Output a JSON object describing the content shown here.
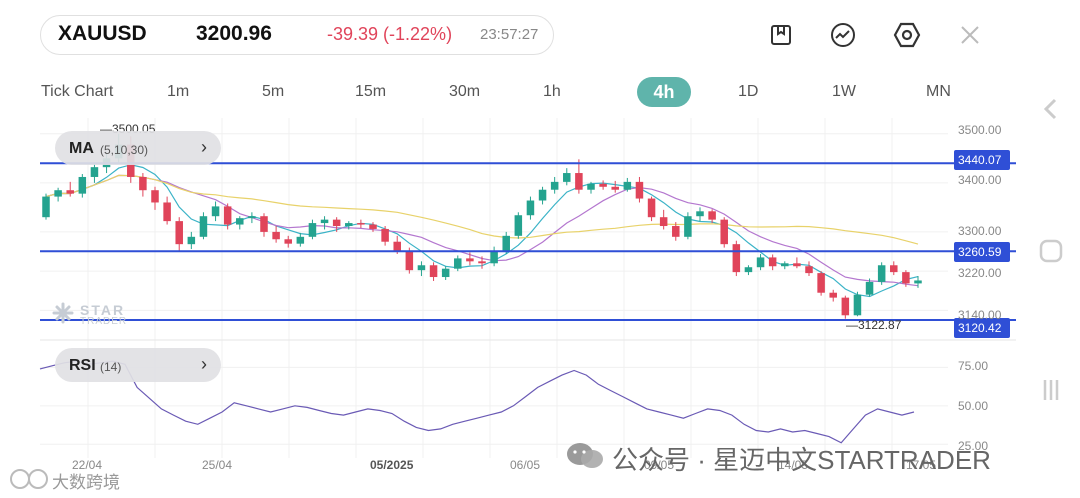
{
  "header": {
    "symbol": "XAUUSD",
    "price": "3200.96",
    "change": "-39.39 (-1.22%)",
    "time": "23:57:27",
    "icons": [
      "bookmark-icon",
      "indicator-icon",
      "settings-icon",
      "close-icon"
    ]
  },
  "timeframes": {
    "items": [
      "Tick Chart",
      "1m",
      "5m",
      "15m",
      "30m",
      "1h",
      "4h",
      "1D",
      "1W",
      "MN"
    ],
    "active": "4h"
  },
  "indicators": {
    "ma_title": "MA",
    "ma_params": "(5,10,30)",
    "rsi_title": "RSI",
    "rsi_params": "(14)"
  },
  "price_levels": {
    "high_marker": "3500.05",
    "low_marker": "3122.87",
    "level_1": "3440.07",
    "level_2": "3260.59",
    "level_3": "3120.42"
  },
  "price_axis": [
    "3500.00",
    "3400.00",
    "3300.00",
    "3220.00",
    "3140.00"
  ],
  "rsi_axis": [
    "75.00",
    "50.00",
    "25.00"
  ],
  "date_axis": [
    "22/04",
    "25/04",
    "05/2025",
    "06/05",
    "09/05",
    "14/05",
    "17/05"
  ],
  "watermarks": {
    "logo_text_1": "STAR",
    "logo_text_2": "TRADER",
    "wechat": "公众号 · 星迈中文STARTRADER",
    "corner": "大数跨境"
  },
  "colors": {
    "up": "#24a38f",
    "down": "#e0445a",
    "ma5": "#3bb3c7",
    "ma10": "#b477cf",
    "ma30": "#e8d26a",
    "level": "#2f4fd6",
    "rsi": "#6a5ab5",
    "active_tf": "#5fb4ab"
  },
  "chart_data": {
    "type": "candlestick",
    "timeframe": "4h",
    "ylim": [
      3100,
      3520
    ],
    "candles": [
      [
        3330,
        3378,
        3325,
        3372
      ],
      [
        3372,
        3390,
        3362,
        3385
      ],
      [
        3385,
        3402,
        3372,
        3378
      ],
      [
        3378,
        3418,
        3370,
        3412
      ],
      [
        3412,
        3440,
        3400,
        3432
      ],
      [
        3432,
        3462,
        3420,
        3450
      ],
      [
        3450,
        3500,
        3440,
        3478
      ],
      [
        3478,
        3495,
        3400,
        3412
      ],
      [
        3412,
        3420,
        3372,
        3385
      ],
      [
        3385,
        3392,
        3345,
        3360
      ],
      [
        3360,
        3372,
        3315,
        3322
      ],
      [
        3322,
        3330,
        3260,
        3275
      ],
      [
        3275,
        3300,
        3265,
        3290
      ],
      [
        3290,
        3340,
        3285,
        3332
      ],
      [
        3332,
        3362,
        3322,
        3352
      ],
      [
        3352,
        3358,
        3305,
        3315
      ],
      [
        3315,
        3332,
        3305,
        3328
      ],
      [
        3328,
        3340,
        3318,
        3332
      ],
      [
        3332,
        3338,
        3290,
        3300
      ],
      [
        3300,
        3312,
        3278,
        3285
      ],
      [
        3285,
        3292,
        3268,
        3276
      ],
      [
        3276,
        3298,
        3270,
        3290
      ],
      [
        3290,
        3325,
        3285,
        3318
      ],
      [
        3318,
        3332,
        3305,
        3325
      ],
      [
        3325,
        3330,
        3300,
        3312
      ],
      [
        3312,
        3322,
        3305,
        3318
      ],
      [
        3318,
        3325,
        3308,
        3315
      ],
      [
        3315,
        3320,
        3300,
        3306
      ],
      [
        3306,
        3312,
        3272,
        3280
      ],
      [
        3280,
        3292,
        3255,
        3262
      ],
      [
        3262,
        3268,
        3215,
        3222
      ],
      [
        3222,
        3240,
        3210,
        3232
      ],
      [
        3232,
        3238,
        3200,
        3208
      ],
      [
        3208,
        3230,
        3202,
        3225
      ],
      [
        3225,
        3252,
        3220,
        3246
      ],
      [
        3246,
        3258,
        3232,
        3240
      ],
      [
        3240,
        3250,
        3225,
        3236
      ],
      [
        3236,
        3270,
        3230,
        3262
      ],
      [
        3262,
        3300,
        3255,
        3292
      ],
      [
        3292,
        3340,
        3286,
        3334
      ],
      [
        3334,
        3372,
        3325,
        3364
      ],
      [
        3364,
        3392,
        3356,
        3386
      ],
      [
        3386,
        3412,
        3378,
        3402
      ],
      [
        3402,
        3430,
        3395,
        3420
      ],
      [
        3420,
        3448,
        3378,
        3386
      ],
      [
        3386,
        3402,
        3378,
        3398
      ],
      [
        3398,
        3405,
        3386,
        3392
      ],
      [
        3392,
        3404,
        3380,
        3386
      ],
      [
        3386,
        3410,
        3382,
        3402
      ],
      [
        3402,
        3412,
        3360,
        3368
      ],
      [
        3368,
        3372,
        3322,
        3330
      ],
      [
        3330,
        3345,
        3305,
        3312
      ],
      [
        3312,
        3320,
        3282,
        3290
      ],
      [
        3290,
        3340,
        3285,
        3332
      ],
      [
        3332,
        3350,
        3322,
        3342
      ],
      [
        3342,
        3346,
        3318,
        3325
      ],
      [
        3325,
        3330,
        3268,
        3275
      ],
      [
        3275,
        3282,
        3210,
        3218
      ],
      [
        3218,
        3232,
        3212,
        3228
      ],
      [
        3228,
        3255,
        3222,
        3248
      ],
      [
        3248,
        3254,
        3222,
        3230
      ],
      [
        3230,
        3240,
        3224,
        3236
      ],
      [
        3236,
        3248,
        3226,
        3230
      ],
      [
        3230,
        3240,
        3210,
        3216
      ],
      [
        3216,
        3220,
        3170,
        3176
      ],
      [
        3176,
        3182,
        3158,
        3166
      ],
      [
        3166,
        3170,
        3123,
        3130
      ],
      [
        3130,
        3178,
        3128,
        3172
      ],
      [
        3172,
        3205,
        3168,
        3198
      ],
      [
        3198,
        3238,
        3192,
        3232
      ],
      [
        3232,
        3240,
        3212,
        3218
      ],
      [
        3218,
        3222,
        3188,
        3195
      ],
      [
        3195,
        3210,
        3186,
        3201
      ]
    ],
    "levels": [
      3440.07,
      3260.59,
      3120.42
    ],
    "annotations": [
      {
        "label": "3500.05",
        "value": 3500.05
      },
      {
        "label": "3122.87",
        "value": 3122.87
      }
    ],
    "rsi": {
      "ylim": [
        20,
        85
      ],
      "values": [
        74,
        76,
        78,
        79,
        77,
        78,
        79,
        77,
        62,
        55,
        48,
        44,
        40,
        38,
        42,
        46,
        52,
        50,
        48,
        46,
        48,
        50,
        49,
        47,
        45,
        44,
        46,
        48,
        47,
        45,
        40,
        36,
        34,
        35,
        38,
        40,
        42,
        44,
        46,
        50,
        56,
        62,
        66,
        70,
        73,
        70,
        64,
        60,
        56,
        52,
        48,
        46,
        44,
        42,
        45,
        48,
        47,
        44,
        38,
        34,
        33,
        35,
        33,
        34,
        32,
        30,
        26,
        35,
        44,
        48,
        46,
        44,
        46
      ]
    }
  }
}
